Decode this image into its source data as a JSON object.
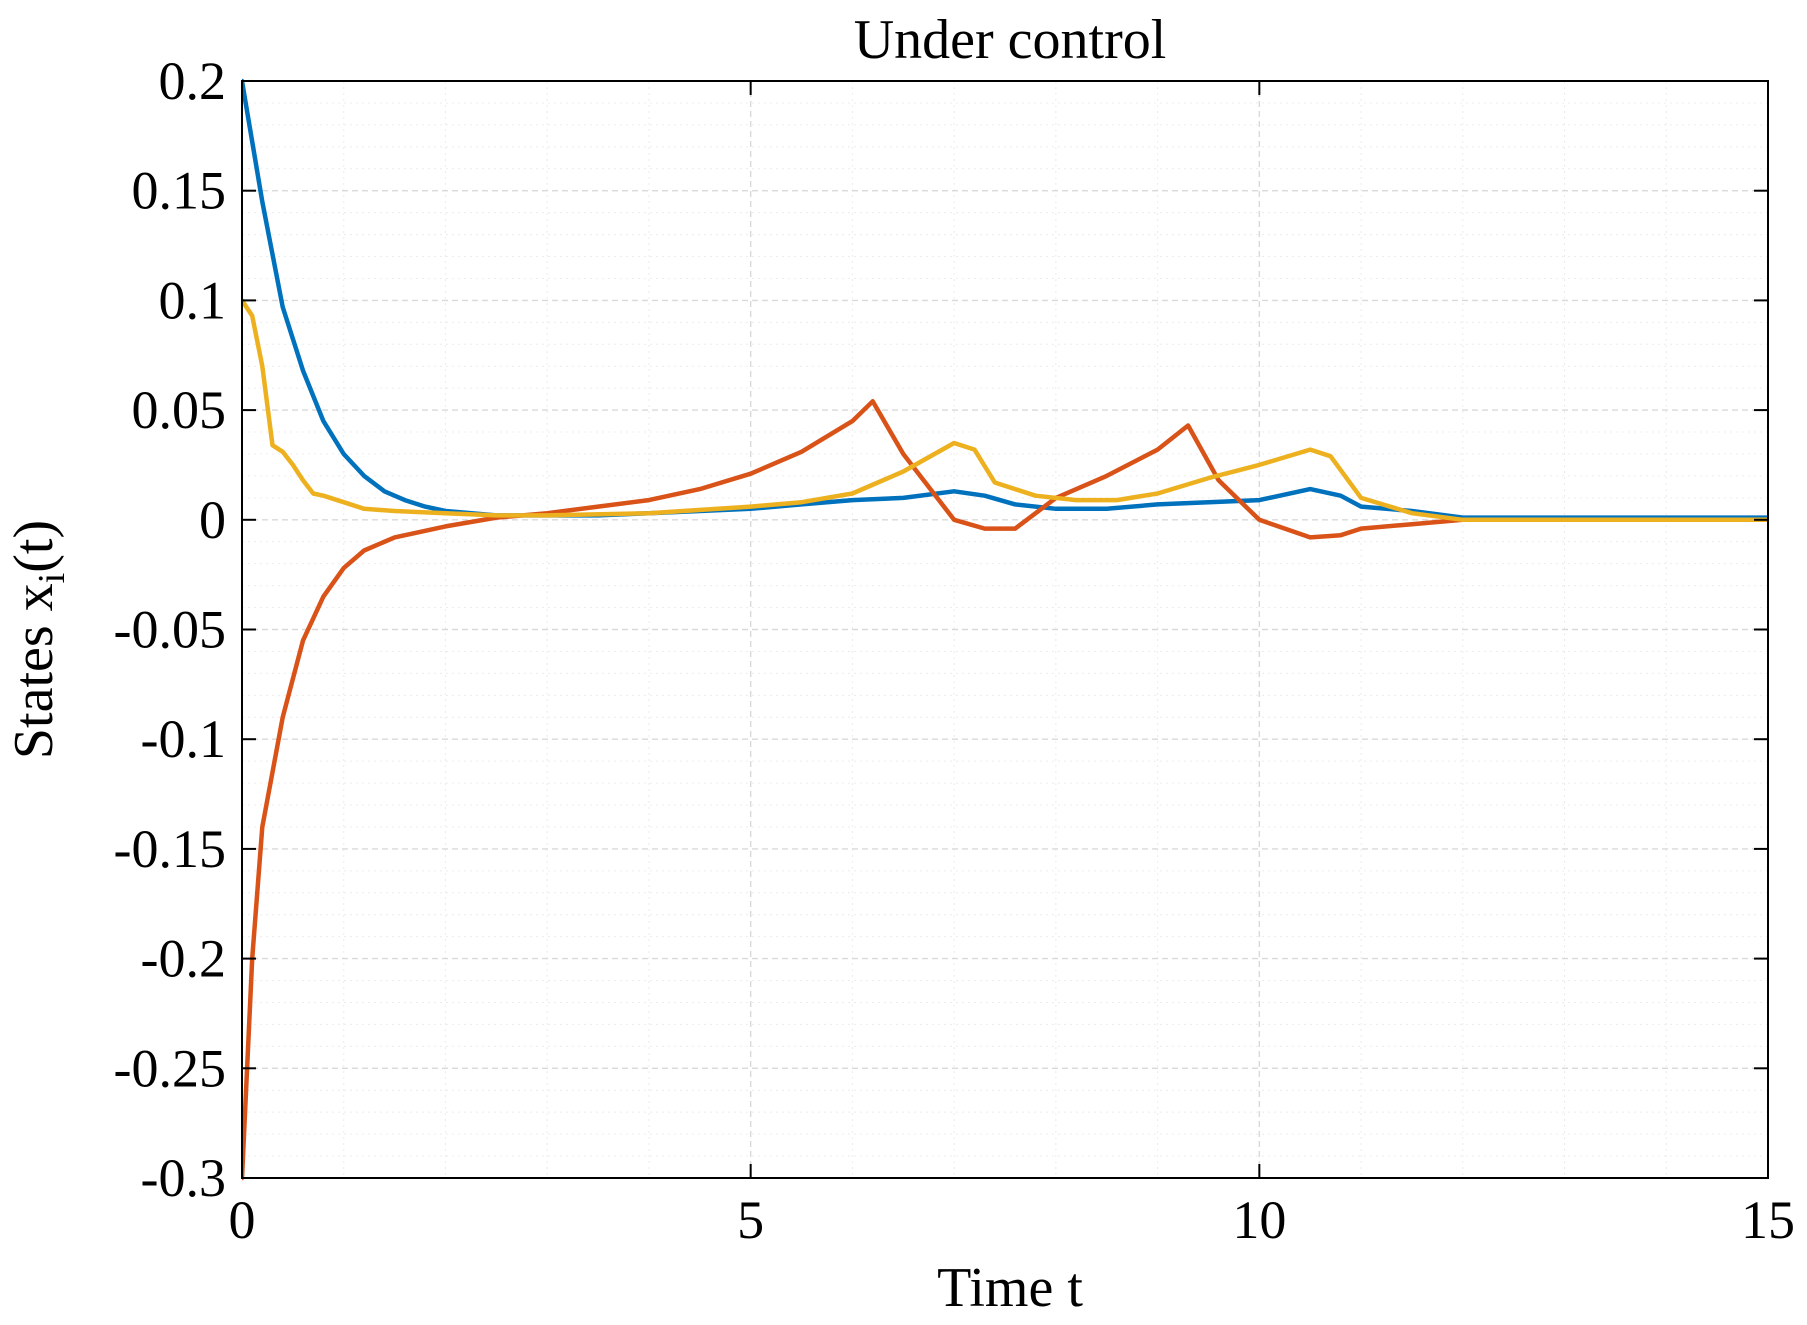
{
  "chart_data": {
    "type": "line",
    "title": "Under control",
    "xlabel": "Time t",
    "ylabel": "States x",
    "ylabel_subscript": "i",
    "ylabel_suffix": "(t)",
    "xlim": [
      0,
      15
    ],
    "ylim": [
      -0.3,
      0.2
    ],
    "x_ticks": [
      0,
      5,
      10,
      15
    ],
    "x_tick_labels": [
      "0",
      "5",
      "10",
      "15"
    ],
    "y_ticks": [
      0.2,
      0.15,
      0.1,
      0.05,
      0,
      -0.05,
      -0.1,
      -0.15,
      -0.2,
      -0.25,
      -0.3
    ],
    "y_tick_labels": [
      "0.2",
      "0.15",
      "0.1",
      "0.05",
      "0",
      "-0.05",
      "-0.1",
      "-0.15",
      "-0.2",
      "-0.25",
      "-0.3"
    ],
    "grid": true,
    "minor_grid": true,
    "series": [
      {
        "color": "#0072BD",
        "x": [
          0,
          0.2,
          0.4,
          0.6,
          0.8,
          1.0,
          1.2,
          1.4,
          1.6,
          1.8,
          2.0,
          2.5,
          3.0,
          3.5,
          4.0,
          4.5,
          5.0,
          5.5,
          6.0,
          6.5,
          7.0,
          7.3,
          7.6,
          8.0,
          8.5,
          9.0,
          9.5,
          10.0,
          10.5,
          10.8,
          11.0,
          11.5,
          12.0,
          13.0,
          14.0,
          15.0
        ],
        "y": [
          0.2,
          0.145,
          0.097,
          0.068,
          0.045,
          0.03,
          0.02,
          0.013,
          0.009,
          0.006,
          0.004,
          0.002,
          0.002,
          0.002,
          0.003,
          0.004,
          0.005,
          0.007,
          0.009,
          0.01,
          0.013,
          0.011,
          0.007,
          0.005,
          0.005,
          0.007,
          0.008,
          0.009,
          0.014,
          0.011,
          0.006,
          0.004,
          0.001,
          0.001,
          0.001,
          0.001
        ]
      },
      {
        "color": "#D95319",
        "x": [
          0,
          0.1,
          0.2,
          0.4,
          0.6,
          0.8,
          1.0,
          1.2,
          1.5,
          2.0,
          2.5,
          3.0,
          3.5,
          4.0,
          4.5,
          5.0,
          5.5,
          6.0,
          6.2,
          6.5,
          7.0,
          7.3,
          7.6,
          8.0,
          8.5,
          9.0,
          9.3,
          9.6,
          10.0,
          10.5,
          10.8,
          11.0,
          11.5,
          12.0,
          13.0,
          14.0,
          15.0
        ],
        "y": [
          -0.3,
          -0.2,
          -0.14,
          -0.09,
          -0.055,
          -0.035,
          -0.022,
          -0.014,
          -0.008,
          -0.003,
          0.001,
          0.003,
          0.006,
          0.009,
          0.014,
          0.021,
          0.031,
          0.045,
          0.054,
          0.03,
          0.0,
          -0.004,
          -0.004,
          0.01,
          0.02,
          0.032,
          0.043,
          0.018,
          0.0,
          -0.008,
          -0.007,
          -0.004,
          -0.002,
          0.0,
          0.0,
          0.0,
          0.0
        ]
      },
      {
        "color": "#EDB120",
        "x": [
          0,
          0.1,
          0.2,
          0.3,
          0.4,
          0.5,
          0.6,
          0.7,
          0.8,
          1.0,
          1.2,
          1.5,
          2.0,
          2.5,
          3.0,
          4.0,
          5.0,
          5.5,
          6.0,
          6.5,
          7.0,
          7.2,
          7.4,
          7.8,
          8.2,
          8.6,
          9.0,
          9.5,
          10.0,
          10.5,
          10.7,
          11.0,
          11.5,
          12.0,
          13.0,
          14.0,
          15.0
        ],
        "y": [
          0.1,
          0.093,
          0.07,
          0.034,
          0.031,
          0.025,
          0.018,
          0.012,
          0.011,
          0.008,
          0.005,
          0.004,
          0.003,
          0.002,
          0.002,
          0.003,
          0.006,
          0.008,
          0.012,
          0.022,
          0.035,
          0.032,
          0.017,
          0.011,
          0.009,
          0.009,
          0.012,
          0.019,
          0.025,
          0.032,
          0.029,
          0.01,
          0.003,
          0.0,
          0.0,
          0.0,
          0.0
        ]
      }
    ]
  }
}
